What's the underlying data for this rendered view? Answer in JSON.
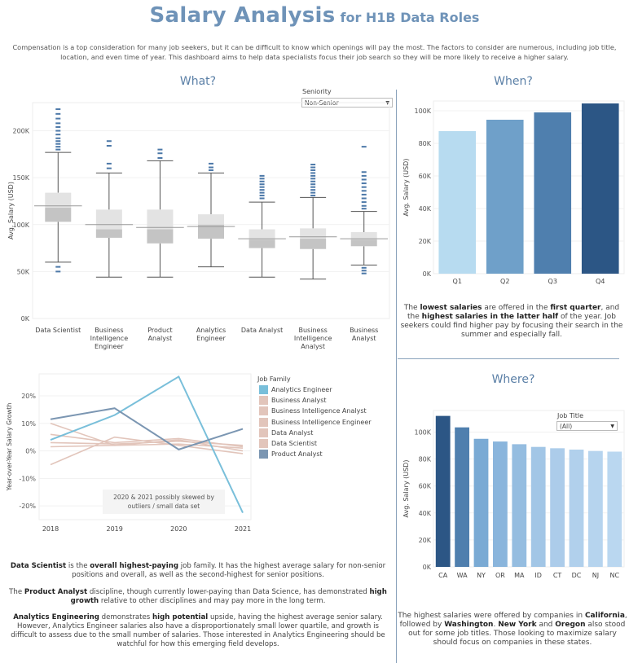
{
  "header": {
    "title": "Salary Analysis",
    "subtitle": "for H1B Data Roles",
    "intro": "Compensation is a top consideration for many job seekers, but it can be difficult to know which openings will pay the most. The factors to consider are numerous, including job title, location, and even time of year. This dashboard aims to help data specialists focus their job search so they will be more likely to receive a higher salary."
  },
  "sections": {
    "what": "What?",
    "when": "When?",
    "where": "Where?"
  },
  "controls": {
    "seniority_label": "Seniority",
    "seniority_value": "Non-Senior",
    "jobtitle_label": "Job Title",
    "jobtitle_value": "(All)",
    "arrow": "▼"
  },
  "legend": {
    "title": "Job Family",
    "items": [
      {
        "name": "Analytics Engineer",
        "color": "#79bfda"
      },
      {
        "name": "Business Analyst",
        "color": "#e2c5bb"
      },
      {
        "name": "Business Intelligence Analyst",
        "color": "#e2c5bb"
      },
      {
        "name": "Business Intelligence Engineer",
        "color": "#e2c5bb"
      },
      {
        "name": "Data Analyst",
        "color": "#e2c5bb"
      },
      {
        "name": "Data Scientist",
        "color": "#e2c5bb"
      },
      {
        "name": "Product Analyst",
        "color": "#7b96b2"
      }
    ]
  },
  "text": {
    "when_para_html": "The <b>lowest salaries</b> are offered in the <b>first quarter</b>, and the <b>highest salaries in the latter half</b> of the year. Job seekers could find higher pay by focusing their search in the summer and especially fall.",
    "where_para_html": "The highest salaries were offered by companies in <b>California</b>, followed by <b>Washington</b>. <b>New York</b> and <b>Oregon</b> also stood out for some job titles. Those looking to maximize salary should focus on companies in these states.",
    "para1_html": "<b>Data Scientist</b> is the <b>overall highest-paying</b> job family. It has the highest average salary for non-senior positions and overall, as well as the second-highest for senior positions.",
    "para2_html": "The <b>Product Analyst</b> discipline, though currently lower-paying than Data Science, has demonstrated <b>high growth</b> relative to other disciplines and may pay more in the long term.",
    "para3_html": "<b>Analytics Engineering</b> demonstrates <b>high potential</b> upside, having the highest average senior salary. However, Analytics Engineer salaries also have a disproportionately small lower quartile, and growth is difficult to assess due to the small number of salaries. Those interested in Analytics Engineering should be watchful for how this emerging field develops."
  },
  "chart_data": [
    {
      "id": "what",
      "type": "boxplot",
      "ylabel": "Avg. Salary (USD)",
      "ylim": [
        0,
        230000
      ],
      "yticks": [
        0,
        50000,
        100000,
        150000,
        200000
      ],
      "ytick_labels": [
        "0K",
        "50K",
        "100K",
        "150K",
        "200K"
      ],
      "categories": [
        "Data Scientist",
        "Business Intelligence Engineer",
        "Product Analyst",
        "Analytics Engineer",
        "Data Analyst",
        "Business Intelligence Analyst",
        "Business Analyst"
      ],
      "boxes": [
        {
          "min": 60000,
          "q1": 103000,
          "median": 118000,
          "q3": 134000,
          "max": 177000,
          "mean": 120000,
          "outliers": [
            50000,
            55000,
            180000,
            183000,
            186000,
            189000,
            192000,
            196000,
            200000,
            204000,
            208000,
            213000,
            218000,
            223000
          ]
        },
        {
          "min": 44000,
          "q1": 86000,
          "median": 95000,
          "q3": 116000,
          "max": 155000,
          "mean": 100000,
          "outliers": [
            160000,
            165000,
            184000,
            189000
          ]
        },
        {
          "min": 44000,
          "q1": 80000,
          "median": 95000,
          "q3": 116000,
          "max": 168000,
          "mean": 97000,
          "outliers": [
            171000,
            176000,
            180000
          ]
        },
        {
          "min": 55000,
          "q1": 85000,
          "median": 100000,
          "q3": 111000,
          "max": 155000,
          "mean": 98000,
          "outliers": [
            158000,
            161000,
            165000
          ]
        },
        {
          "min": 44000,
          "q1": 75000,
          "median": 84000,
          "q3": 95000,
          "max": 124000,
          "mean": 85000,
          "outliers": [
            128000,
            131000,
            134000,
            137000,
            140000,
            143000,
            146000,
            149000,
            152000
          ]
        },
        {
          "min": 42000,
          "q1": 74000,
          "median": 85000,
          "q3": 96000,
          "max": 129000,
          "mean": 87000,
          "outliers": [
            131000,
            134000,
            137000,
            140000,
            143000,
            146000,
            149000,
            152000,
            155000,
            158000,
            161000,
            164000
          ]
        },
        {
          "min": 57000,
          "q1": 77000,
          "median": 84000,
          "q3": 92000,
          "max": 114000,
          "mean": 85000,
          "outliers": [
            48000,
            51000,
            54000,
            117000,
            120000,
            124000,
            128000,
            132000,
            136000,
            140000,
            144000,
            148000,
            152000,
            156000,
            183000
          ]
        }
      ]
    },
    {
      "id": "when",
      "type": "bar",
      "ylabel": "Avg. Salary (USD)",
      "ylim": [
        0,
        106000
      ],
      "yticks": [
        0,
        20000,
        40000,
        60000,
        80000,
        100000
      ],
      "ytick_labels": [
        "0K",
        "20K",
        "40K",
        "60K",
        "80K",
        "100K"
      ],
      "categories": [
        "Q1",
        "Q2",
        "Q3",
        "Q4"
      ],
      "values": [
        87500,
        94500,
        99000,
        104500
      ],
      "colors": [
        "#b7dbf0",
        "#6fa0c9",
        "#4f7fae",
        "#2c5685"
      ]
    },
    {
      "id": "growth",
      "type": "line",
      "ylabel": "Year-over-Year Salary Growth",
      "ylim": [
        -0.25,
        0.28
      ],
      "yticks": [
        -0.2,
        -0.1,
        0,
        0.1,
        0.2
      ],
      "ytick_labels": [
        "-20%",
        "-10%",
        "0%",
        "10%",
        "20%"
      ],
      "x": [
        "2018",
        "2019",
        "2020",
        "2021"
      ],
      "annotation_lines": [
        "2020 & 2021 possibly skewed by",
        "outliers / small data set"
      ],
      "series": [
        {
          "name": "Business Analyst",
          "values": [
            0.03,
            0.025,
            0.035,
            0.02
          ]
        },
        {
          "name": "Business Intelligence Analyst",
          "values": [
            0.1,
            0.02,
            0.04,
            0.0
          ]
        },
        {
          "name": "Business Intelligence Engineer",
          "values": [
            -0.05,
            0.05,
            0.02,
            -0.01
          ]
        },
        {
          "name": "Data Analyst",
          "values": [
            0.06,
            0.03,
            0.045,
            0.015
          ]
        },
        {
          "name": "Data Scientist",
          "values": [
            0.015,
            0.02,
            0.025,
            0.01
          ]
        },
        {
          "name": "Analytics Engineer",
          "values": [
            0.04,
            0.13,
            0.27,
            -0.225
          ]
        },
        {
          "name": "Product Analyst",
          "values": [
            0.115,
            0.155,
            0.005,
            0.08
          ]
        }
      ]
    },
    {
      "id": "where",
      "type": "bar",
      "ylabel": "Avg. Salary (USD)",
      "ylim": [
        0,
        116000
      ],
      "yticks": [
        0,
        20000,
        40000,
        60000,
        80000,
        100000
      ],
      "ytick_labels": [
        "0K",
        "20K",
        "40K",
        "60K",
        "80K",
        "100K"
      ],
      "categories": [
        "CA",
        "WA",
        "NY",
        "OR",
        "MA",
        "ID",
        "CT",
        "DC",
        "NJ",
        "NC"
      ],
      "values": [
        112000,
        103500,
        95000,
        93000,
        91000,
        89000,
        88000,
        87000,
        86000,
        85500
      ],
      "colors": [
        "#2c5685",
        "#4f7fae",
        "#7aaad4",
        "#8ab5dc",
        "#95bde0",
        "#a2c6e6",
        "#acccea",
        "#b1d0ec",
        "#b6d4ee",
        "#bad7f0"
      ]
    }
  ]
}
